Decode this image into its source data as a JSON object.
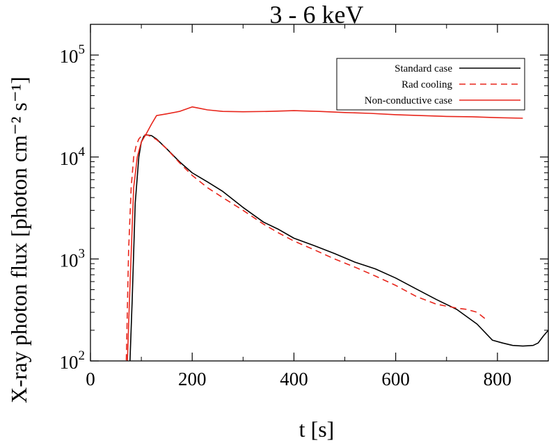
{
  "chart_data": {
    "type": "line",
    "title": "3 - 6 keV",
    "xlabel": "t  [s]",
    "ylabel": "X-ray photon flux  [photon cm⁻² s⁻¹]",
    "xlim": [
      0,
      900
    ],
    "ylim": [
      100,
      200000
    ],
    "yscale": "log",
    "xticks": [
      0,
      200,
      400,
      600,
      800
    ],
    "ytick_labels": [
      {
        "value": 100,
        "base": "10",
        "exp": "2"
      },
      {
        "value": 1000,
        "base": "10",
        "exp": "3"
      },
      {
        "value": 10000,
        "base": "10",
        "exp": "4"
      },
      {
        "value": 100000,
        "base": "10",
        "exp": "5"
      }
    ],
    "grid": false,
    "legend_position": "top-right",
    "series": [
      {
        "name": "Standard case",
        "color": "#000000",
        "dash": "solid",
        "x": [
          77,
          82,
          88,
          95,
          100,
          105,
          110,
          120,
          130,
          150,
          175,
          200,
          230,
          260,
          300,
          340,
          370,
          400,
          440,
          480,
          520,
          560,
          600,
          640,
          680,
          720,
          760,
          790,
          810,
          830,
          850,
          870,
          880,
          890,
          900
        ],
        "y": [
          80,
          400,
          3500,
          10000,
          14000,
          16000,
          16500,
          16200,
          15000,
          12000,
          9000,
          7000,
          5700,
          4600,
          3200,
          2300,
          1950,
          1600,
          1350,
          1130,
          930,
          800,
          650,
          510,
          400,
          320,
          230,
          160,
          150,
          142,
          140,
          142,
          150,
          175,
          200
        ]
      },
      {
        "name": "Rad cooling",
        "color": "#e8251b",
        "dash": "dashed",
        "x": [
          70,
          75,
          80,
          85,
          90,
          95,
          100,
          105,
          110,
          115,
          120,
          130,
          150,
          175,
          200,
          230,
          260,
          300,
          340,
          370,
          400,
          440,
          480,
          520,
          560,
          600,
          640,
          680,
          720,
          740,
          760,
          780
        ],
        "y": [
          80,
          1200,
          5000,
          10000,
          13000,
          15000,
          16000,
          16500,
          16500,
          16200,
          15800,
          14800,
          12000,
          8800,
          6600,
          5000,
          4000,
          3000,
          2200,
          1800,
          1500,
          1230,
          1000,
          830,
          680,
          550,
          430,
          360,
          330,
          320,
          300,
          250
        ]
      },
      {
        "name": "Non-conductive case",
        "color": "#e8251b",
        "dash": "solid",
        "x": [
          72,
          78,
          85,
          92,
          100,
          110,
          120,
          130,
          150,
          175,
          200,
          215,
          230,
          260,
          300,
          350,
          400,
          450,
          500,
          550,
          600,
          650,
          700,
          750,
          800,
          850
        ],
        "y": [
          80,
          600,
          5000,
          10000,
          14000,
          17000,
          21000,
          25500,
          26500,
          28000,
          31000,
          30000,
          29000,
          28000,
          27800,
          28000,
          28500,
          28000,
          27300,
          26800,
          26000,
          25500,
          25000,
          24800,
          24300,
          24000
        ]
      }
    ]
  }
}
